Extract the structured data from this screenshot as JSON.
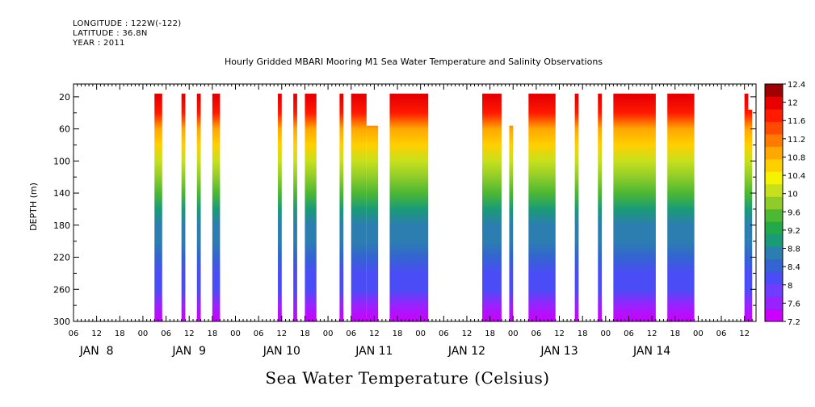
{
  "meta": {
    "longitude": "LONGITUDE : 122W(-122)",
    "latitude": "LATITUDE : 36.8N",
    "year": "YEAR : 2011"
  },
  "chart_data": {
    "type": "heatmap",
    "title": "Hourly Gridded MBARI Mooring M1 Sea Water Temperature and Salinity Observations",
    "subtitle": "Sea Water Temperature (Celsius)",
    "ylabel": "DEPTH (m)",
    "xlabel": "",
    "ylim": [
      300,
      0
    ],
    "y_ticks": [
      20,
      60,
      100,
      140,
      180,
      220,
      260,
      300
    ],
    "y_range": [
      4,
      300
    ],
    "x_range_hours": [
      -18,
      159
    ],
    "x_hour_ticks": [
      0,
      6,
      12,
      18
    ],
    "x_hour_labels": [
      "00",
      "06",
      "12",
      "18"
    ],
    "day_labels": [
      "JAN  8",
      "JAN  9",
      "JAN 10",
      "JAN 11",
      "JAN 12",
      "JAN 13",
      "JAN 14"
    ],
    "colorbar": {
      "levels": [
        7.2,
        7.6,
        8,
        8.4,
        8.8,
        9.2,
        9.6,
        10,
        10.4,
        10.8,
        11.2,
        11.6,
        12,
        12.4
      ],
      "colors": [
        "#cc00ff",
        "#9a22ff",
        "#6f3dff",
        "#4a4df5",
        "#3364d2",
        "#2c7eb0",
        "#1a9b78",
        "#23a84a",
        "#4cb834",
        "#8fcc2a",
        "#c6e01c",
        "#f4f400",
        "#ffd000",
        "#ffa800",
        "#ff7a00",
        "#ff4a00",
        "#ff1a00",
        "#e80000",
        "#a00000"
      ],
      "tick_labels": [
        "7.2",
        "7.6",
        "8",
        "8.4",
        "8.8",
        "9.2",
        "9.6",
        "10",
        "10.4",
        "10.8",
        "11.2",
        "11.6",
        "12",
        "12.4"
      ]
    },
    "data_bars": [
      {
        "start": 3,
        "end": 5,
        "top": 20
      },
      {
        "start": 10,
        "end": 11,
        "top": 20
      },
      {
        "start": 14,
        "end": 15,
        "top": 20
      },
      {
        "start": 18,
        "end": 20,
        "top": 20
      },
      {
        "start": 35,
        "end": 36,
        "top": 20
      },
      {
        "start": 39,
        "end": 40,
        "top": 20
      },
      {
        "start": 42,
        "end": 45,
        "top": 20
      },
      {
        "start": 51,
        "end": 52,
        "top": 20
      },
      {
        "start": 54,
        "end": 58,
        "top": 20
      },
      {
        "start": 58,
        "end": 61,
        "top": 60
      },
      {
        "start": 64,
        "end": 74,
        "top": 20
      },
      {
        "start": 88,
        "end": 93,
        "top": 20
      },
      {
        "start": 95,
        "end": 96,
        "top": 60
      },
      {
        "start": 100,
        "end": 107,
        "top": 20
      },
      {
        "start": 112,
        "end": 113,
        "top": 20
      },
      {
        "start": 118,
        "end": 119,
        "top": 20
      },
      {
        "start": 122,
        "end": 133,
        "top": 20
      },
      {
        "start": 136,
        "end": 143,
        "top": 20
      },
      {
        "start": 156,
        "end": 157,
        "top": 20
      },
      {
        "start": 157,
        "end": 158,
        "top": 40
      },
      {
        "start": 162,
        "end": 163,
        "top": 20
      }
    ],
    "profile": [
      {
        "depth": 20,
        "temp": 12.2
      },
      {
        "depth": 40,
        "temp": 11.8
      },
      {
        "depth": 60,
        "temp": 11.2
      },
      {
        "depth": 80,
        "temp": 10.6
      },
      {
        "depth": 100,
        "temp": 10.2
      },
      {
        "depth": 120,
        "temp": 9.8
      },
      {
        "depth": 140,
        "temp": 9.4
      },
      {
        "depth": 160,
        "temp": 9.0
      },
      {
        "depth": 180,
        "temp": 8.7
      },
      {
        "depth": 200,
        "temp": 8.5
      },
      {
        "depth": 220,
        "temp": 8.3
      },
      {
        "depth": 240,
        "temp": 8.1
      },
      {
        "depth": 260,
        "temp": 7.9
      },
      {
        "depth": 280,
        "temp": 7.6
      },
      {
        "depth": 300,
        "temp": 7.3
      }
    ]
  }
}
